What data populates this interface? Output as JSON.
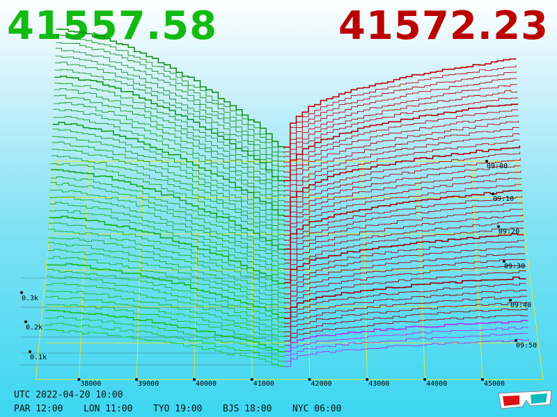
{
  "prices": {
    "bid": "41557.58",
    "ask": "41572.23"
  },
  "colors": {
    "bid": "#11bb11",
    "ask": "#bb0000",
    "grid": "#e8e830",
    "depth_front": "#aa33ee"
  },
  "chart_data": {
    "type": "line",
    "x_ticks": [
      38000,
      39000,
      40000,
      41000,
      42000,
      43000,
      44000,
      45000
    ],
    "x_tick_labels": [
      "38000",
      "39000",
      "40000",
      "41000",
      "42000",
      "43000",
      "44000",
      "45000"
    ],
    "y_tick_labels": [
      "0.3k",
      "0.2k",
      "0.1k"
    ],
    "time_labels": [
      "09:00",
      "09:10",
      "09:20",
      "09:30",
      "09:40",
      "09:50"
    ],
    "mid_price": 41565,
    "series": [
      {
        "side": "bid",
        "x_range": [
          37400,
          41557.58
        ]
      },
      {
        "side": "ask",
        "x_range": [
          41572.23,
          45800
        ]
      }
    ]
  },
  "footer": {
    "utc": "UTC 2022-04-20 10:00",
    "cities": [
      "PAR 12:00",
      "LON 11:00",
      "TYO 19:00",
      "BJS 18:00",
      "NYC 06:00"
    ]
  }
}
